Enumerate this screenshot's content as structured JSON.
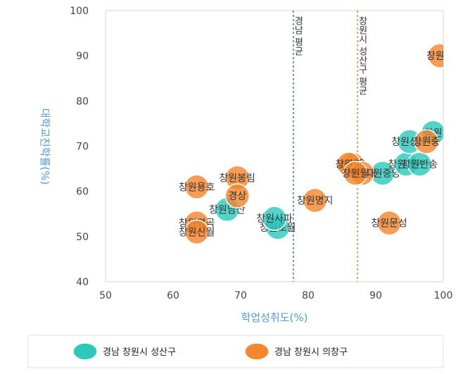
{
  "chart_data": {
    "type": "scatter",
    "xlabel": "학업성취도(%)",
    "ylabel": "대학교진학률(%)",
    "xlim": [
      50,
      100
    ],
    "ylim": [
      40,
      100
    ],
    "xticks": [
      "50",
      "60",
      "70",
      "80",
      "90",
      "100"
    ],
    "yticks": [
      "40",
      "50",
      "60",
      "70",
      "80",
      "90",
      "100"
    ],
    "grid": false,
    "legend_position": "bottom",
    "colors": {
      "seongsan": "#2ec9bd",
      "uichang": "#f5862e",
      "ref_gyeongnam": "#3a78b8",
      "ref_changwon": "#f5862e"
    },
    "reference_lines": [
      {
        "label": "경남 평균",
        "x": 77.8,
        "color_key": "ref_gyeongnam"
      },
      {
        "label": "창원시 성산구 평균",
        "x": 87.3,
        "color_key": "ref_changwon"
      }
    ],
    "series": [
      {
        "name": "경남 창원시 성산구",
        "color_key": "seongsan",
        "points": [
          {
            "x": 75.5,
            "y": 52,
            "label": "창원토월"
          },
          {
            "x": 75.0,
            "y": 54,
            "label": "창원사파"
          },
          {
            "x": 68.0,
            "y": 56,
            "label": "창원남산"
          },
          {
            "x": 91.0,
            "y": 64,
            "label": "창원중앙"
          },
          {
            "x": 94.5,
            "y": 66,
            "label": "창원대원"
          },
          {
            "x": 96.5,
            "y": 66,
            "label": "창원반송"
          },
          {
            "x": 95.0,
            "y": 71,
            "label": "창원상남"
          },
          {
            "x": 98.5,
            "y": 73,
            "label": "창원"
          }
        ]
      },
      {
        "name": "경남 창원시 의창구",
        "color_key": "uichang",
        "points": [
          {
            "x": 99.5,
            "y": 90,
            "label": "창원고"
          },
          {
            "x": 97.5,
            "y": 71,
            "label": "창원중"
          },
          {
            "x": 86.5,
            "y": 66,
            "label": "창원용"
          },
          {
            "x": 86.0,
            "y": 66,
            "label": "창원명"
          },
          {
            "x": 88.0,
            "y": 64,
            "label": "창원대"
          },
          {
            "x": 87.0,
            "y": 64,
            "label": "창원월"
          },
          {
            "x": 81.0,
            "y": 58,
            "label": "창원명지"
          },
          {
            "x": 92.0,
            "y": 53,
            "label": "창원문성"
          },
          {
            "x": 69.5,
            "y": 63,
            "label": "창원봉림"
          },
          {
            "x": 69.5,
            "y": 59,
            "label": "경상"
          },
          {
            "x": 63.5,
            "y": 61,
            "label": "창원용호"
          },
          {
            "x": 63.5,
            "y": 53,
            "label": "창원명곡"
          },
          {
            "x": 63.5,
            "y": 51,
            "label": "창원신월"
          }
        ]
      }
    ]
  }
}
